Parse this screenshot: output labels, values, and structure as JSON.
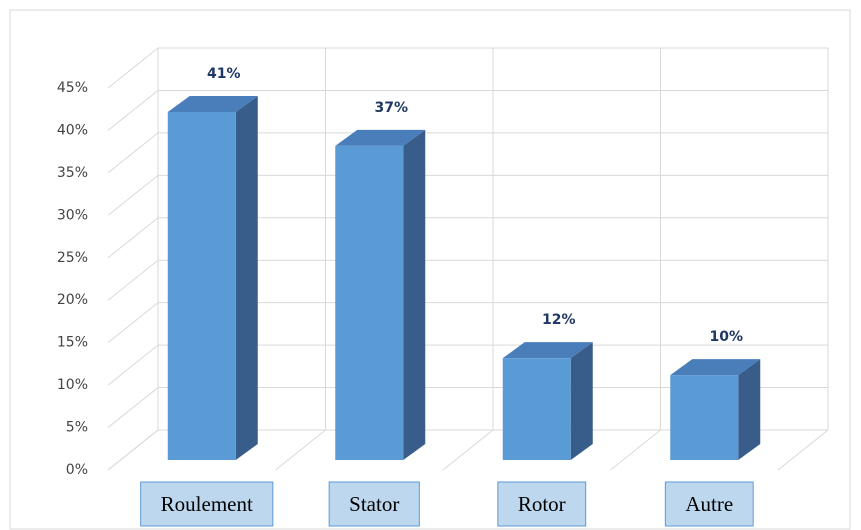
{
  "chart_data": {
    "type": "bar3d",
    "categories": [
      "Roulement",
      "Stator",
      "Rotor",
      "Autre"
    ],
    "values": [
      41,
      37,
      12,
      10
    ],
    "value_labels": [
      "41%",
      "37%",
      "12%",
      "10%"
    ],
    "color": "#5b9bd5",
    "ylim": [
      0,
      45
    ],
    "yticks": [
      {
        "value": 0,
        "label": "0%"
      },
      {
        "value": 5,
        "label": "5%"
      },
      {
        "value": 10,
        "label": "10%"
      },
      {
        "value": 15,
        "label": "15%"
      },
      {
        "value": 20,
        "label": "20%"
      },
      {
        "value": 25,
        "label": "25%"
      },
      {
        "value": 30,
        "label": "30%"
      },
      {
        "value": 35,
        "label": "35%"
      },
      {
        "value": 40,
        "label": "40%"
      },
      {
        "value": 45,
        "label": "45%"
      }
    ],
    "grid": true
  }
}
